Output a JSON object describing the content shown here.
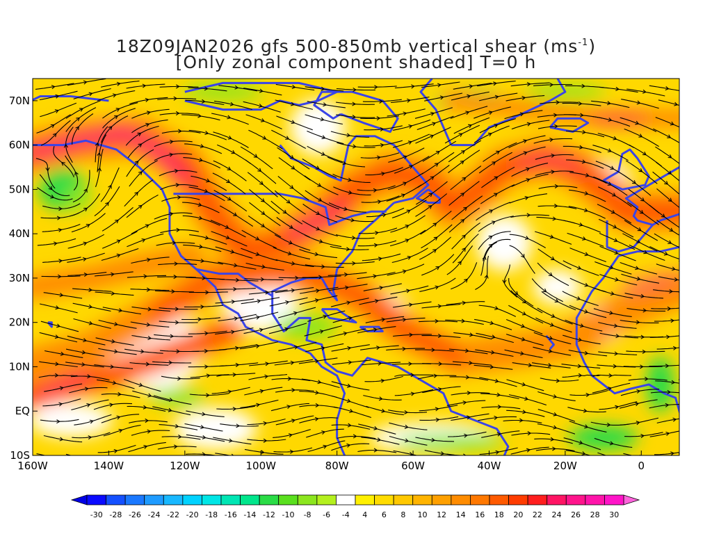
{
  "title": {
    "line1_prefix": "18Z09JAN2026 gfs 500-850mb vertical shear (ms",
    "line1_sup": "-1",
    "line1_suffix": ")",
    "line2": "[Only zonal component shaded] T=0 h"
  },
  "map": {
    "lon_range": [
      -160,
      10
    ],
    "lat_range": [
      -10,
      75
    ],
    "y_ticks": [
      "70N",
      "60N",
      "50N",
      "40N",
      "30N",
      "20N",
      "10N",
      "EQ",
      "10S"
    ],
    "y_tick_values": [
      70,
      60,
      50,
      40,
      30,
      20,
      10,
      0,
      -10
    ],
    "x_ticks": [
      "160W",
      "140W",
      "120W",
      "100W",
      "80W",
      "60W",
      "40W",
      "20W",
      "0"
    ],
    "x_tick_values": [
      -160,
      -140,
      -120,
      -100,
      -80,
      -60,
      -40,
      -20,
      0
    ],
    "coastline_color": "#3a44e8",
    "streamline_color": "#000000"
  },
  "colorbar": {
    "labels": [
      "-30",
      "-28",
      "-26",
      "-24",
      "-22",
      "-20",
      "-18",
      "-16",
      "-14",
      "-12",
      "-10",
      "-8",
      "-6",
      "-4",
      "4",
      "6",
      "8",
      "10",
      "12",
      "14",
      "16",
      "18",
      "20",
      "22",
      "24",
      "26",
      "28",
      "30"
    ],
    "colors": [
      "#0a0aff",
      "#1450ff",
      "#1a78ff",
      "#1e9bff",
      "#18b8ff",
      "#00d2ff",
      "#00e6e6",
      "#00e6b4",
      "#00e68c",
      "#2adc46",
      "#5ae01e",
      "#8ce61e",
      "#b4f01e",
      "#ffffff",
      "#fff000",
      "#ffdc00",
      "#ffc800",
      "#ffb400",
      "#ffa000",
      "#ff8c00",
      "#ff7800",
      "#ff5a00",
      "#ff3c00",
      "#ff1e1e",
      "#ff1464",
      "#ff148c",
      "#ff14aa",
      "#ff14c8"
    ],
    "left_arrow_color": "#0000e6",
    "right_arrow_color": "#ff64dc"
  },
  "shading_colors": {
    "white": "#ffffff",
    "yellow": "#fff000",
    "gold": "#ffc800",
    "orange": "#ff8c00",
    "red_orange": "#ff3c00",
    "magenta": "#ff148c",
    "lime": "#8ce61e",
    "green": "#2adc46"
  }
}
